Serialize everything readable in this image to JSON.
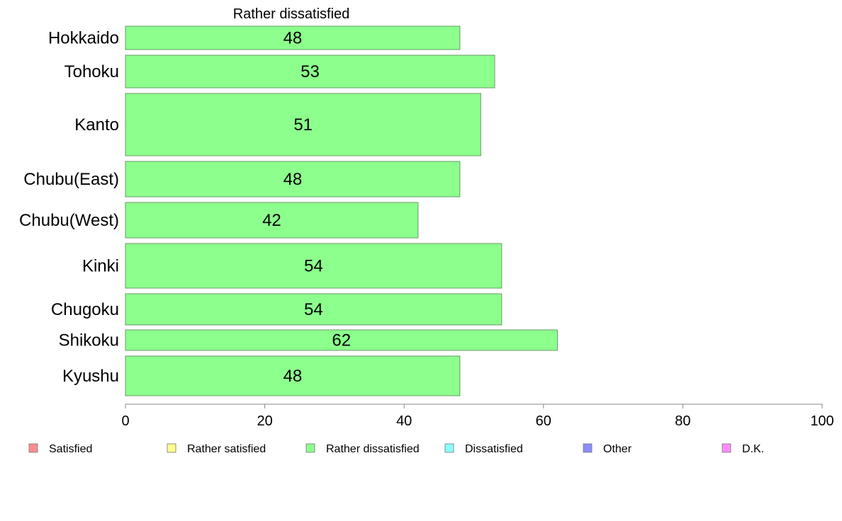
{
  "chart_data": {
    "type": "bar",
    "orientation": "horizontal",
    "title": "Rather dissatisfied",
    "categories": [
      "Hokkaido",
      "Tohoku",
      "Kanto",
      "Chubu(East)",
      "Chubu(West)",
      "Kinki",
      "Chugoku",
      "Shikoku",
      "Kyushu"
    ],
    "series": [
      {
        "name": "Rather dissatisfied",
        "values": [
          48,
          53,
          51,
          48,
          42,
          54,
          54,
          62,
          48
        ],
        "color": "#8cff8c"
      }
    ],
    "data_labels": [
      "48",
      "53",
      "51",
      "48",
      "42",
      "54",
      "54",
      "62",
      "48"
    ],
    "xlim": [
      0,
      100
    ],
    "xticks": [
      0,
      20,
      40,
      60,
      80,
      100
    ],
    "grid": false,
    "legend": {
      "placement": "bottom",
      "items": [
        {
          "label": "Satisfied",
          "color": "#ff8c8c"
        },
        {
          "label": "Rather satisfied",
          "color": "#ffff8c"
        },
        {
          "label": "Rather dissatisfied",
          "color": "#8cff8c"
        },
        {
          "label": "Dissatisfied",
          "color": "#8cffff"
        },
        {
          "label": "Other",
          "color": "#8c8cff"
        },
        {
          "label": "D.K.",
          "color": "#ff8cff"
        }
      ]
    }
  }
}
